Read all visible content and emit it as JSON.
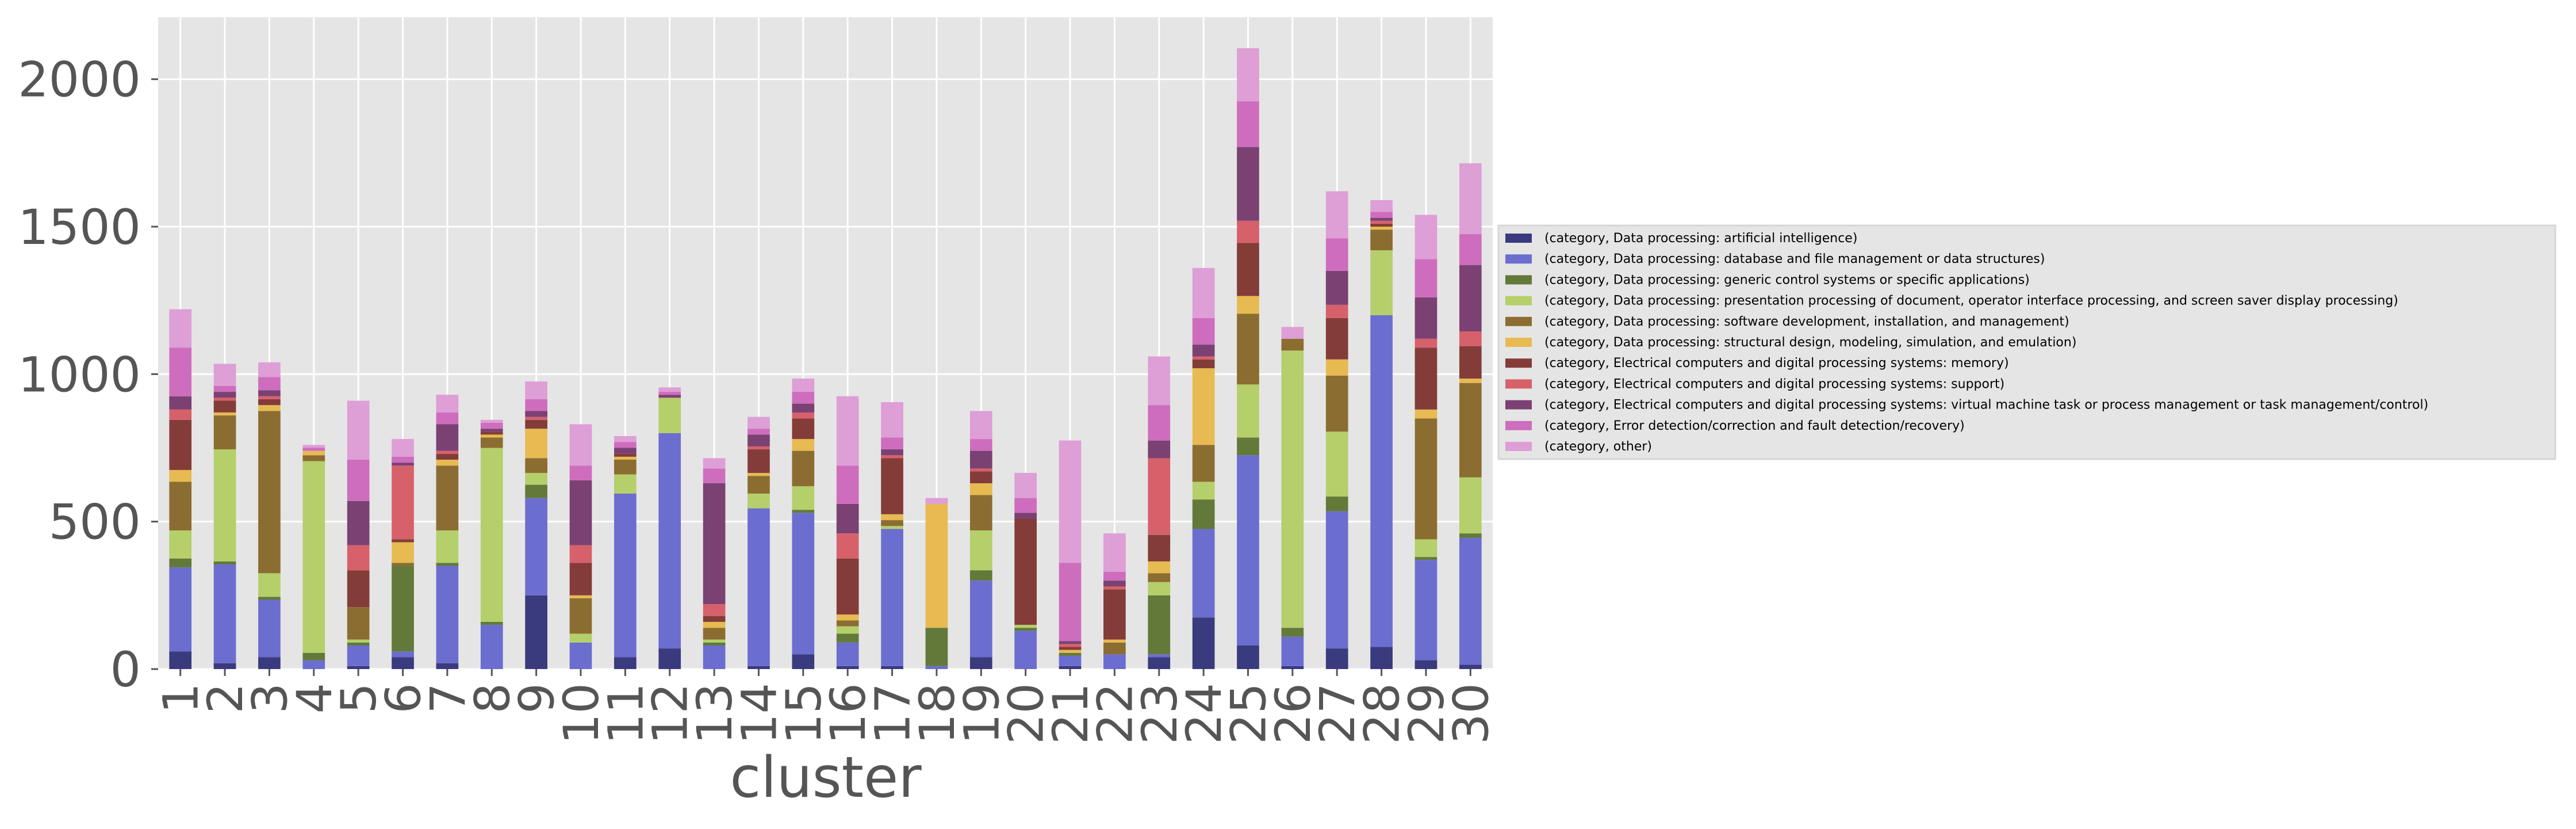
{
  "chart_data": {
    "type": "bar",
    "stacked": true,
    "xlabel": "cluster",
    "ylabel": "",
    "ylim": [
      0,
      2210
    ],
    "yticks": [
      0,
      500,
      1000,
      1500,
      2000
    ],
    "grid": true,
    "legend_position": "right",
    "categories": [
      "1",
      "2",
      "3",
      "4",
      "5",
      "6",
      "7",
      "8",
      "9",
      "10",
      "11",
      "12",
      "13",
      "14",
      "15",
      "16",
      "17",
      "18",
      "19",
      "20",
      "21",
      "22",
      "23",
      "24",
      "25",
      "26",
      "27",
      "28",
      "29",
      "30"
    ],
    "series": [
      {
        "name": "(category, Data processing: artificial intelligence)",
        "color": "#3a3a7e",
        "values": [
          60,
          20,
          40,
          0,
          10,
          40,
          20,
          0,
          250,
          0,
          40,
          70,
          0,
          10,
          50,
          10,
          10,
          0,
          40,
          0,
          10,
          0,
          40,
          175,
          80,
          10,
          70,
          75,
          30,
          15
        ]
      },
      {
        "name": "(category, Data processing: database and file management or data structures)",
        "color": "#6b6ecf",
        "values": [
          285,
          335,
          195,
          30,
          70,
          20,
          330,
          150,
          330,
          90,
          555,
          730,
          80,
          535,
          480,
          80,
          465,
          10,
          260,
          130,
          35,
          50,
          10,
          300,
          645,
          100,
          465,
          1125,
          340,
          430
        ]
      },
      {
        "name": "(category, Data processing: generic control systems or specific applications)",
        "color": "#637939",
        "values": [
          30,
          10,
          10,
          25,
          10,
          290,
          10,
          10,
          45,
          0,
          0,
          0,
          10,
          0,
          10,
          30,
          0,
          130,
          35,
          10,
          10,
          0,
          200,
          100,
          60,
          30,
          50,
          0,
          10,
          15
        ]
      },
      {
        "name": "(category, Data processing: presentation processing of document, operator interface processing, and screen saver display processing)",
        "color": "#b5cf6b",
        "values": [
          95,
          380,
          80,
          650,
          10,
          0,
          110,
          590,
          40,
          30,
          65,
          120,
          10,
          50,
          80,
          25,
          10,
          0,
          135,
          10,
          0,
          0,
          45,
          60,
          180,
          940,
          220,
          220,
          60,
          190
        ]
      },
      {
        "name": "(category, Data processing: software development, installation, and management)",
        "color": "#8c6d31",
        "values": [
          165,
          115,
          550,
          20,
          110,
          10,
          220,
          35,
          50,
          120,
          50,
          0,
          40,
          60,
          120,
          20,
          20,
          0,
          120,
          0,
          0,
          40,
          30,
          125,
          240,
          40,
          190,
          70,
          410,
          320
        ]
      },
      {
        "name": "(category, Data processing: structural design, modeling, simulation, and emulation)",
        "color": "#e7ba52",
        "values": [
          40,
          10,
          20,
          15,
          0,
          70,
          20,
          10,
          100,
          10,
          10,
          0,
          20,
          10,
          40,
          20,
          20,
          420,
          40,
          0,
          10,
          10,
          40,
          260,
          60,
          0,
          55,
          10,
          30,
          15
        ]
      },
      {
        "name": "(category, Electrical computers and digital processing systems: memory)",
        "color": "#843c39",
        "values": [
          170,
          40,
          20,
          0,
          125,
          10,
          20,
          10,
          30,
          110,
          10,
          0,
          20,
          80,
          70,
          190,
          190,
          0,
          40,
          360,
          10,
          170,
          90,
          30,
          180,
          0,
          140,
          10,
          210,
          110
        ]
      },
      {
        "name": "(category, Electrical computers and digital processing systems: support)",
        "color": "#d6616b",
        "values": [
          35,
          10,
          10,
          0,
          85,
          250,
          10,
          0,
          10,
          60,
          0,
          0,
          40,
          10,
          20,
          85,
          10,
          0,
          10,
          0,
          10,
          10,
          260,
          10,
          75,
          0,
          45,
          10,
          30,
          50
        ]
      },
      {
        "name": "(category, Electrical computers and digital processing systems: virtual machine task or process management or task management/control)",
        "color": "#7b4173",
        "values": [
          45,
          20,
          20,
          0,
          150,
          10,
          90,
          10,
          20,
          220,
          20,
          10,
          410,
          40,
          30,
          100,
          20,
          0,
          60,
          20,
          10,
          20,
          60,
          40,
          250,
          0,
          115,
          10,
          140,
          225
        ]
      },
      {
        "name": "(category, Error detection/correction and fault detection/recovery)",
        "color": "#ce6dbd",
        "values": [
          165,
          20,
          45,
          10,
          140,
          20,
          40,
          20,
          40,
          50,
          20,
          10,
          50,
          20,
          40,
          130,
          40,
          0,
          40,
          50,
          265,
          30,
          120,
          90,
          155,
          0,
          110,
          20,
          130,
          105
        ]
      },
      {
        "name": "(category, other)",
        "color": "#de9ed6",
        "values": [
          130,
          75,
          50,
          10,
          200,
          60,
          60,
          10,
          60,
          140,
          20,
          15,
          35,
          40,
          45,
          235,
          120,
          20,
          95,
          85,
          415,
          130,
          165,
          170,
          180,
          40,
          160,
          40,
          150,
          240
        ]
      }
    ]
  }
}
